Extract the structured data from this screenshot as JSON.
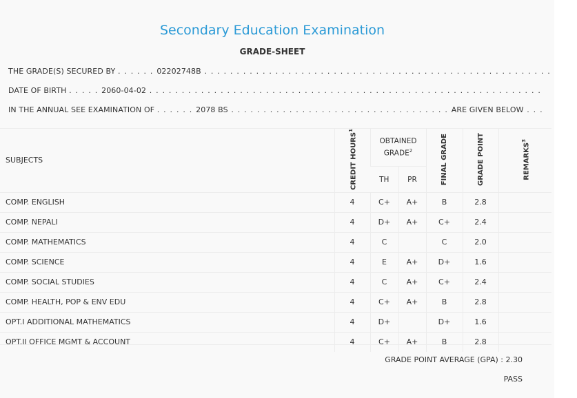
{
  "header": {
    "title": "Secondary Education Examination",
    "subtitle": "GRADE-SHEET"
  },
  "info": {
    "secured_by_label": "THE GRADE(S) SECURED BY",
    "symbol_number": "02202748B",
    "dob_label": "DATE OF BIRTH",
    "dob": "2060-04-02",
    "exam_label": "IN THE ANNUAL SEE EXAMINATION OF",
    "exam_year": "2078 BS",
    "given_below": "ARE GIVEN BELOW"
  },
  "table": {
    "headers": {
      "subjects": "SUBJECTS",
      "credit_hours": "CREDIT HOURS",
      "credit_sup": "1",
      "obtained_grade": "OBTAINED GRADE",
      "obtained_sup": "2",
      "th": "TH",
      "pr": "PR",
      "final_grade": "FINAL GRADE",
      "grade_point": "GRADE POINT",
      "remarks": "REMARKS",
      "remarks_sup": "3"
    },
    "rows": [
      {
        "subject": "COMP. ENGLISH",
        "credit": "4",
        "th": "C+",
        "pr": "A+",
        "final": "B",
        "gp": "2.8",
        "remarks": ""
      },
      {
        "subject": "COMP. NEPALI",
        "credit": "4",
        "th": "D+",
        "pr": "A+",
        "final": "C+",
        "gp": "2.4",
        "remarks": ""
      },
      {
        "subject": "COMP. MATHEMATICS",
        "credit": "4",
        "th": "C",
        "pr": "",
        "final": "C",
        "gp": "2.0",
        "remarks": ""
      },
      {
        "subject": "COMP. SCIENCE",
        "credit": "4",
        "th": "E",
        "pr": "A+",
        "final": "D+",
        "gp": "1.6",
        "remarks": ""
      },
      {
        "subject": "COMP. SOCIAL STUDIES",
        "credit": "4",
        "th": "C",
        "pr": "A+",
        "final": "C+",
        "gp": "2.4",
        "remarks": ""
      },
      {
        "subject": "COMP. HEALTH, POP & ENV EDU",
        "credit": "4",
        "th": "C+",
        "pr": "A+",
        "final": "B",
        "gp": "2.8",
        "remarks": ""
      },
      {
        "subject": "OPT.I ADDITIONAL MATHEMATICS",
        "credit": "4",
        "th": "D+",
        "pr": "",
        "final": "D+",
        "gp": "1.6",
        "remarks": ""
      },
      {
        "subject": "OPT.II OFFICE MGMT & ACCOUNT",
        "credit": "4",
        "th": "C+",
        "pr": "A+",
        "final": "B",
        "gp": "2.8",
        "remarks": ""
      }
    ]
  },
  "summary": {
    "gpa_label": "GRADE POINT AVERAGE (GPA) :",
    "gpa_value": "2.30",
    "result": "PASS"
  },
  "colors": {
    "title": "#2b9ad6",
    "text": "#333333",
    "border": "#ececec"
  }
}
